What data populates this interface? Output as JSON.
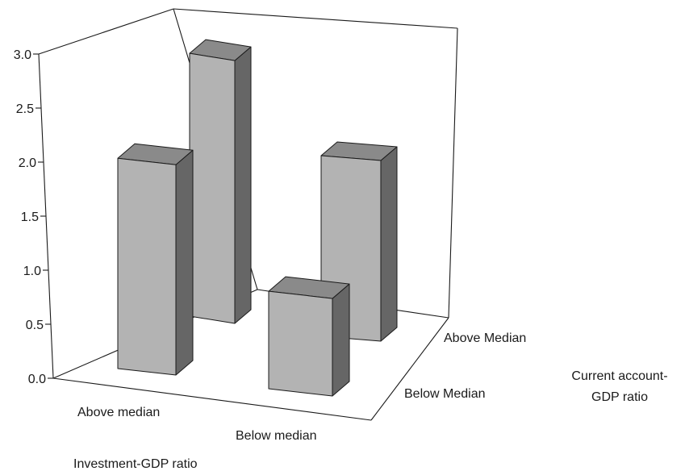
{
  "chart_data": {
    "type": "bar",
    "subtype": "3d-grid",
    "x_axis": {
      "label": "Investment-GDP ratio",
      "categories": [
        "Above median",
        "Below median"
      ]
    },
    "depth_axis": {
      "label_lines": [
        "Current account-",
        "GDP ratio"
      ],
      "categories": [
        "Below Median",
        "Above Median"
      ]
    },
    "y_axis": {
      "ticks": [
        "0.0",
        "0.5",
        "1.0",
        "1.5",
        "2.0",
        "2.5",
        "3.0"
      ],
      "ylim": [
        0,
        3.0
      ]
    },
    "values": [
      {
        "investment": "Above median",
        "current_account": "Below Median",
        "value": 1.75
      },
      {
        "investment": "Above median",
        "current_account": "Above Median",
        "value": 2.45
      },
      {
        "investment": "Below median",
        "current_account": "Below Median",
        "value": 0.78
      },
      {
        "investment": "Below median",
        "current_account": "Above Median",
        "value": 1.6
      }
    ],
    "colors": {
      "front": "#b3b3b3",
      "top": "#8a8a8a",
      "side": "#666666",
      "line": "#1a1a1a"
    }
  }
}
